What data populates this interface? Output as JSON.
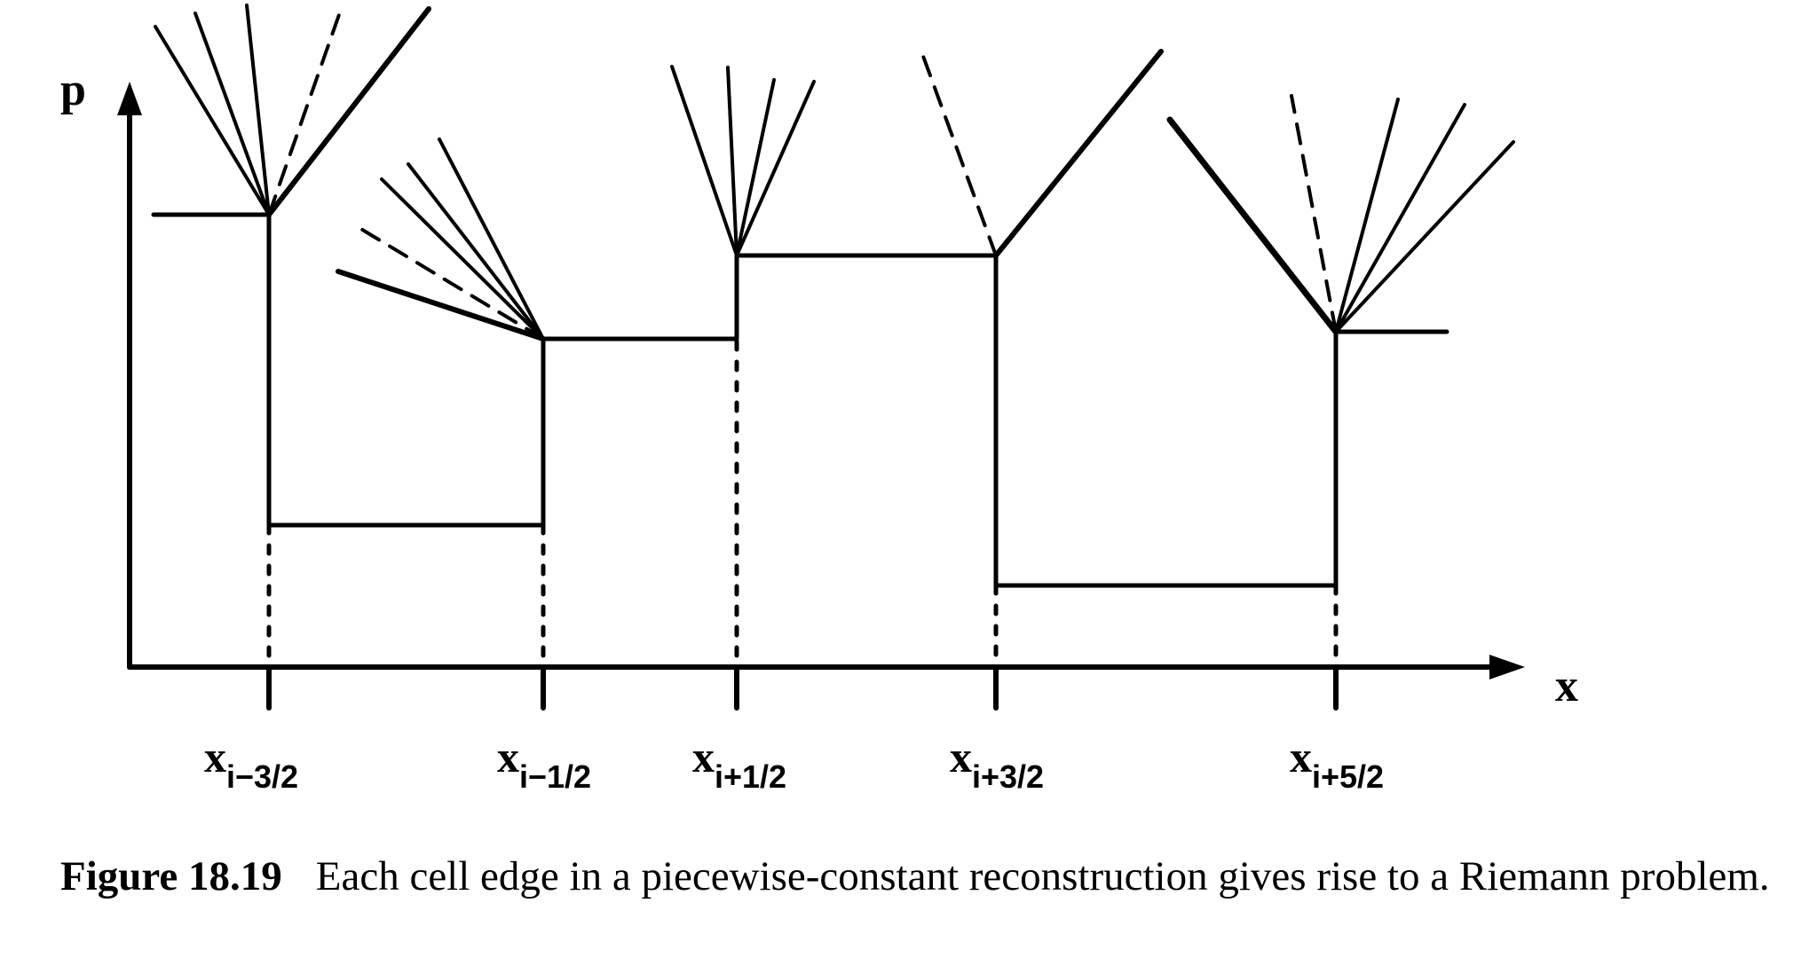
{
  "axes": {
    "y_label": "p",
    "x_label": "x"
  },
  "cell_edges": [
    {
      "base": "x",
      "sub": "i−3/2"
    },
    {
      "base": "x",
      "sub": "i−1/2"
    },
    {
      "base": "x",
      "sub": "i+1/2"
    },
    {
      "base": "x",
      "sub": "i+3/2"
    },
    {
      "base": "x",
      "sub": "i+5/2"
    }
  ],
  "caption": {
    "number": "Figure 18.19",
    "text": "Each cell edge in a piecewise-constant reconstruction gives rise to a Riemann problem."
  }
}
